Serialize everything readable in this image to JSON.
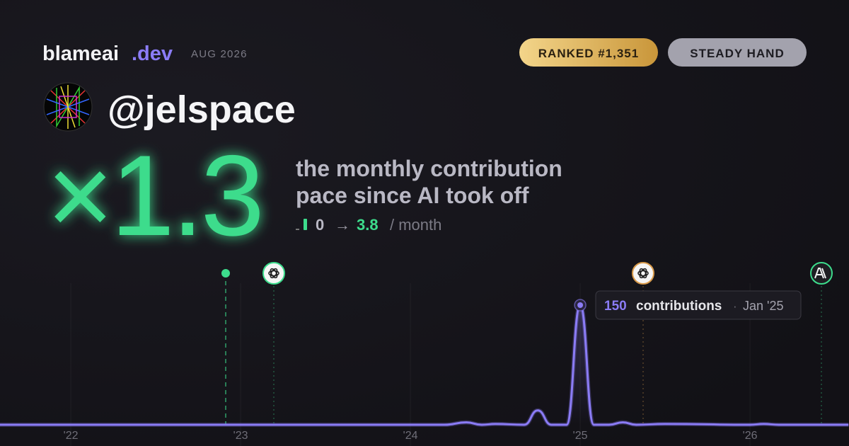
{
  "header": {
    "brand": "blameai",
    "brand_suffix": ".dev",
    "date": "AUG 2026",
    "badges": [
      "RANKED #1,351",
      "STEADY HAND"
    ]
  },
  "user": {
    "handle": "@jelspace"
  },
  "hero": {
    "multiplier": "×1.3",
    "description": [
      "the monthly contribution",
      "pace since AI took off"
    ],
    "from": "0",
    "arrow": "→",
    "to": "3.8",
    "unit": "/ month"
  },
  "tooltip": {
    "value": "150",
    "label": "contributions",
    "separator": "·",
    "date": "Jan '25"
  },
  "chart_data": {
    "type": "line",
    "series": [
      {
        "name": "contributions",
        "color": "#8b7cf6",
        "x": [
          2021.58,
          2024.2,
          2024.33,
          2024.42,
          2024.5,
          2024.67,
          2024.75,
          2024.83,
          2024.92,
          2025.0,
          2025.08,
          2025.17,
          2025.25,
          2025.33,
          2025.5,
          2026.0,
          2026.08,
          2026.17,
          2026.58
        ],
        "values": [
          0,
          0,
          3,
          0,
          1,
          0,
          18,
          0,
          0,
          150,
          0,
          0,
          3,
          0,
          1,
          0,
          1,
          0,
          0
        ]
      }
    ],
    "xlim": [
      2021.583,
      2026.583
    ],
    "ylim": [
      0,
      160
    ],
    "xticks": [
      {
        "value": 2022,
        "label": "'22"
      },
      {
        "value": 2023,
        "label": "'23"
      },
      {
        "value": 2024,
        "label": "'24"
      },
      {
        "value": 2025,
        "label": "'25"
      },
      {
        "value": 2026,
        "label": "'26"
      }
    ],
    "grid": true
  }
}
